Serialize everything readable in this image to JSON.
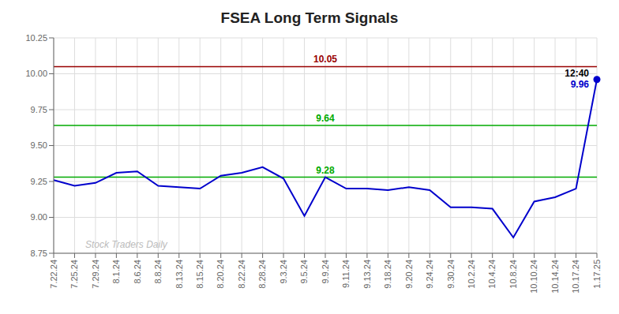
{
  "chart_data": {
    "type": "line",
    "title": "FSEA Long Term Signals",
    "categories": [
      "7.22.24",
      "7.25.24",
      "7.29.24",
      "8.1.24",
      "8.6.24",
      "8.8.24",
      "8.13.24",
      "8.15.24",
      "8.20.24",
      "8.22.24",
      "8.28.24",
      "9.3.24",
      "9.5.24",
      "9.9.24",
      "9.11.24",
      "9.13.24",
      "9.18.24",
      "9.20.24",
      "9.24.24",
      "9.30.24",
      "10.2.24",
      "10.4.24",
      "10.8.24",
      "10.10.24",
      "10.14.24",
      "10.17.24",
      "1.17.25"
    ],
    "values": [
      9.26,
      9.22,
      9.24,
      9.31,
      9.32,
      9.22,
      9.21,
      9.2,
      9.29,
      9.31,
      9.35,
      9.27,
      9.01,
      9.28,
      9.2,
      9.2,
      9.19,
      9.21,
      9.19,
      9.07,
      9.07,
      9.06,
      8.86,
      9.11,
      9.14,
      9.2,
      9.96
    ],
    "color": "#0000cc",
    "marker": "last",
    "ylim": [
      8.75,
      10.25
    ],
    "yticks": [
      8.75,
      {
        "value": 9.0,
        "label": "9.00"
      },
      9.25,
      {
        "value": 9.5,
        "label": "9.50"
      },
      9.75,
      {
        "value": 10.0,
        "label": "10.00"
      },
      10.25
    ],
    "grid": true,
    "hlines": [
      {
        "value": 10.05,
        "label": "10.05",
        "color": "#990000"
      },
      {
        "value": 9.64,
        "label": "9.64",
        "color": "#00aa00"
      },
      {
        "value": 9.28,
        "label": "9.28",
        "color": "#00aa00"
      }
    ],
    "annotations": [
      {
        "text": "12:40",
        "category": "1.17.25",
        "color": "#000000"
      },
      {
        "text": "9.96",
        "category": "1.17.25",
        "color": "#0000cc"
      }
    ],
    "watermark": {
      "text": "Stock Traders Daily",
      "color": "#bbbbbb"
    }
  }
}
